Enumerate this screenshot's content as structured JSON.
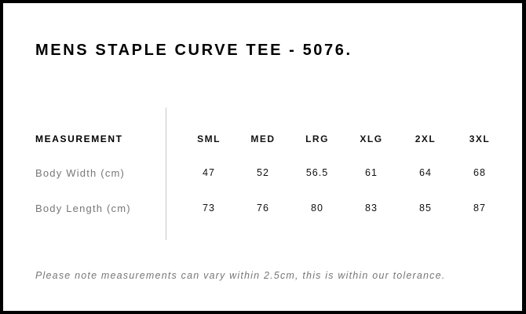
{
  "title": "MENS STAPLE CURVE TEE - 5076.",
  "table": {
    "header_label": "MEASUREMENT",
    "sizes": [
      "SML",
      "MED",
      "LRG",
      "XLG",
      "2XL",
      "3XL"
    ],
    "rows": [
      {
        "label": "Body Width (cm)",
        "values": [
          "47",
          "52",
          "56.5",
          "61",
          "64",
          "68"
        ]
      },
      {
        "label": "Body Length (cm)",
        "values": [
          "73",
          "76",
          "80",
          "83",
          "85",
          "87"
        ]
      }
    ]
  },
  "note": "Please note measurements can vary within 2.5cm, this is within our tolerance."
}
